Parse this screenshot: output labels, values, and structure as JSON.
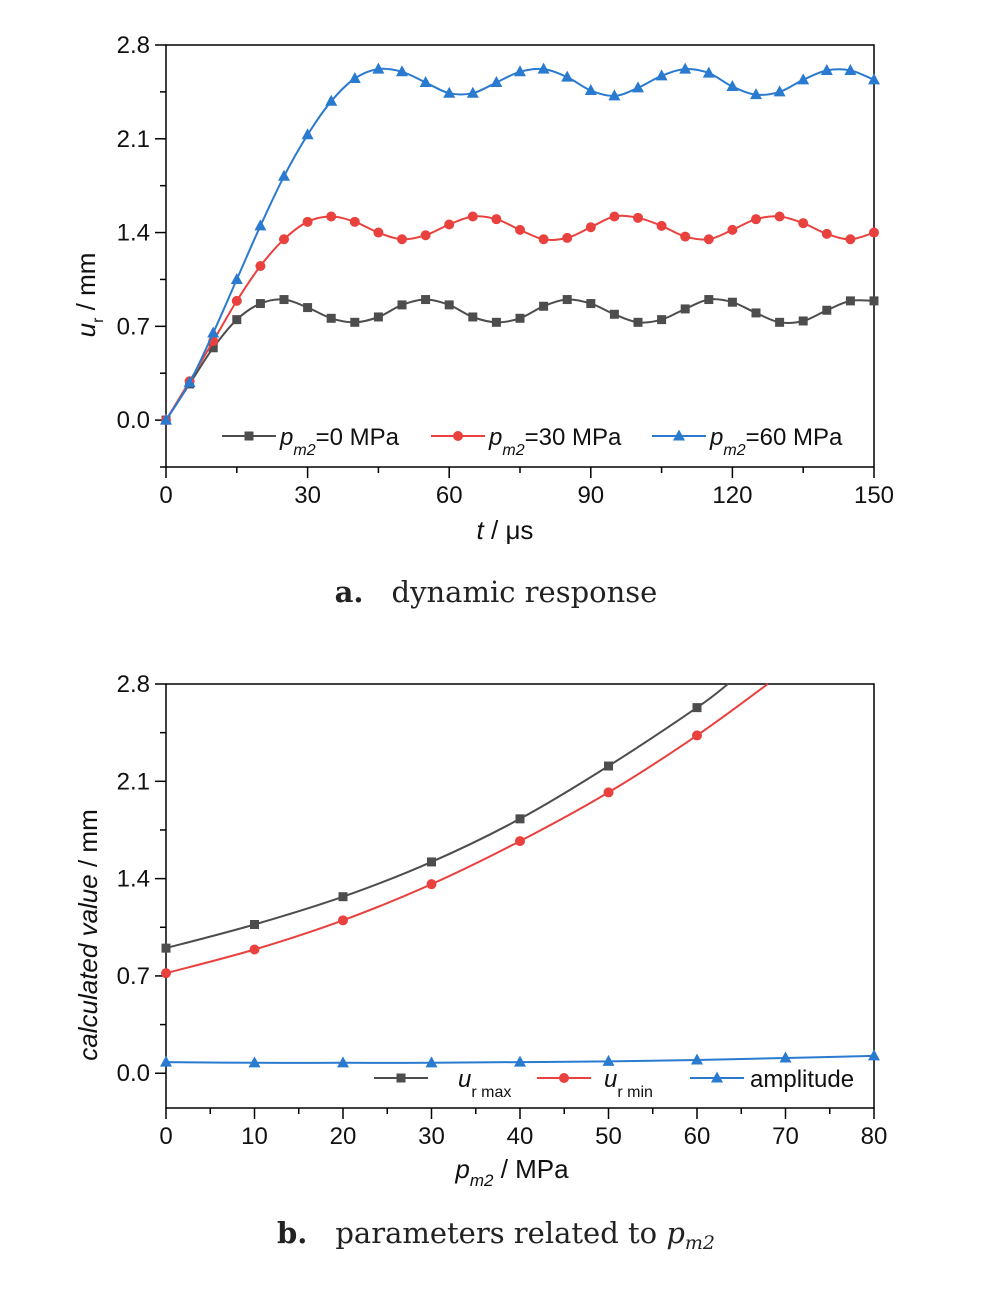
{
  "chart_data": [
    {
      "type": "line",
      "caption_letter": "a.",
      "caption_text": "dynamic response",
      "xlabel_italic": "t",
      "xlabel_rest": " / μs",
      "ylabel_main": "u",
      "ylabel_sub": "r",
      "ylabel_rest": " / mm",
      "xlim": [
        0,
        150
      ],
      "ylim": [
        -0.35,
        2.8
      ],
      "xticks": [
        "0",
        "30",
        "60",
        "90",
        "120",
        "150"
      ],
      "yticks": [
        "0.0",
        "0.7",
        "1.4",
        "2.1",
        "2.8"
      ],
      "legend_position": "bottom",
      "series": [
        {
          "name_main": "p",
          "name_sub": "m2",
          "name_rest": "=0 MPa",
          "color": "#4d4d4d",
          "marker": "square",
          "x": [
            0,
            5,
            10,
            15,
            20,
            25,
            30,
            35,
            40,
            45,
            50,
            55,
            60,
            65,
            70,
            75,
            80,
            85,
            90,
            95,
            100,
            105,
            110,
            115,
            120,
            125,
            130,
            135,
            140,
            145,
            150
          ],
          "y": [
            0.0,
            0.27,
            0.54,
            0.75,
            0.87,
            0.9,
            0.84,
            0.76,
            0.73,
            0.77,
            0.86,
            0.9,
            0.86,
            0.77,
            0.73,
            0.76,
            0.85,
            0.9,
            0.87,
            0.79,
            0.73,
            0.75,
            0.83,
            0.9,
            0.88,
            0.8,
            0.73,
            0.74,
            0.82,
            0.89,
            0.89
          ]
        },
        {
          "name_main": "p",
          "name_sub": "m2",
          "name_rest": "=30 MPa",
          "color": "#e8413e",
          "marker": "circle",
          "x": [
            0,
            5,
            10,
            15,
            20,
            25,
            30,
            35,
            40,
            45,
            50,
            55,
            60,
            65,
            70,
            75,
            80,
            85,
            90,
            95,
            100,
            105,
            110,
            115,
            120,
            125,
            130,
            135,
            140,
            145,
            150
          ],
          "y": [
            0.0,
            0.29,
            0.59,
            0.89,
            1.15,
            1.35,
            1.48,
            1.52,
            1.48,
            1.4,
            1.35,
            1.38,
            1.46,
            1.52,
            1.5,
            1.42,
            1.35,
            1.36,
            1.44,
            1.52,
            1.51,
            1.45,
            1.37,
            1.35,
            1.42,
            1.5,
            1.52,
            1.47,
            1.39,
            1.35,
            1.4
          ]
        },
        {
          "name_main": "p",
          "name_sub": "m2",
          "name_rest": "=60 MPa",
          "color": "#2a7bd0",
          "marker": "triangle",
          "x": [
            0,
            5,
            10,
            15,
            20,
            25,
            30,
            35,
            40,
            45,
            50,
            55,
            60,
            65,
            70,
            75,
            80,
            85,
            90,
            95,
            100,
            105,
            110,
            115,
            120,
            125,
            130,
            135,
            140,
            145,
            150
          ],
          "y": [
            0.0,
            0.28,
            0.65,
            1.05,
            1.45,
            1.82,
            2.13,
            2.38,
            2.55,
            2.62,
            2.6,
            2.52,
            2.44,
            2.44,
            2.52,
            2.6,
            2.62,
            2.56,
            2.46,
            2.42,
            2.48,
            2.57,
            2.62,
            2.59,
            2.49,
            2.43,
            2.45,
            2.54,
            2.61,
            2.61,
            2.54
          ]
        }
      ]
    },
    {
      "type": "line",
      "caption_letter": "b.",
      "caption_text": "parameters related to ",
      "caption_var": "p",
      "caption_sub": "m2",
      "xlabel_italic": "p",
      "xlabel_sub": "m2",
      "xlabel_rest": " / MPa",
      "ylabel_italic": "calculated value",
      "ylabel_rest": " / mm",
      "xlim": [
        0,
        80
      ],
      "ylim": [
        -0.25,
        2.8
      ],
      "xticks": [
        "0",
        "10",
        "20",
        "30",
        "40",
        "50",
        "60",
        "70",
        "80"
      ],
      "yticks": [
        "0.0",
        "0.7",
        "1.4",
        "2.1",
        "2.8"
      ],
      "legend_position": "bottom-right",
      "series": [
        {
          "name_main": "u",
          "name_sub": "r max",
          "color": "#4d4d4d",
          "marker": "square",
          "x": [
            0,
            10,
            20,
            30,
            40,
            50,
            60,
            63.5
          ],
          "y": [
            0.9,
            1.07,
            1.27,
            1.52,
            1.83,
            2.21,
            2.63,
            2.8
          ]
        },
        {
          "name_main": "u",
          "name_sub": "r min",
          "color": "#e8413e",
          "marker": "circle",
          "x": [
            0,
            10,
            20,
            30,
            40,
            50,
            60,
            68
          ],
          "y": [
            0.72,
            0.89,
            1.1,
            1.36,
            1.67,
            2.02,
            2.43,
            2.8
          ]
        },
        {
          "name_main": "amplitude",
          "name_sub": "",
          "color": "#2a7bd0",
          "marker": "triangle",
          "x": [
            0,
            10,
            20,
            30,
            40,
            50,
            60,
            70,
            80
          ],
          "y": [
            0.08,
            0.075,
            0.075,
            0.075,
            0.08,
            0.085,
            0.095,
            0.11,
            0.125
          ]
        }
      ]
    }
  ]
}
